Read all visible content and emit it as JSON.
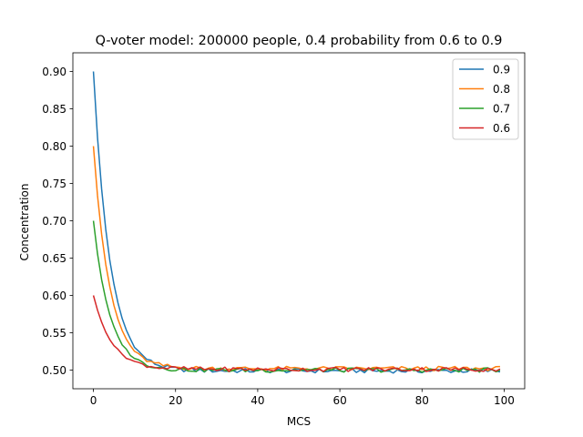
{
  "chart_data": {
    "type": "line",
    "title": "Q-voter model: 200000 people, 0.4 probability from 0.6 to 0.9",
    "xlabel": "MCS",
    "ylabel": "Concentration",
    "xlim": [
      -5,
      105
    ],
    "ylim": [
      0.475,
      0.925
    ],
    "xticks": [
      0,
      20,
      40,
      60,
      80,
      100
    ],
    "xtick_labels": [
      "0",
      "20",
      "40",
      "60",
      "80",
      "100"
    ],
    "yticks": [
      0.5,
      0.55,
      0.6,
      0.65,
      0.7,
      0.75,
      0.8,
      0.85,
      0.9
    ],
    "ytick_labels": [
      "0.50",
      "0.55",
      "0.60",
      "0.65",
      "0.70",
      "0.75",
      "0.80",
      "0.85",
      "0.90"
    ],
    "grid": false,
    "legend_position": "top-right",
    "series": [
      {
        "name": "0.9",
        "color": "#1f77b4",
        "start": 0.9,
        "tau": 4.0,
        "tail_offset": -0.001
      },
      {
        "name": "0.8",
        "color": "#ff7f0e",
        "start": 0.8,
        "tau": 4.0,
        "tail_offset": 0.002
      },
      {
        "name": "0.7",
        "color": "#2ca02c",
        "start": 0.7,
        "tau": 4.0,
        "tail_offset": 0.0
      },
      {
        "name": "0.6",
        "color": "#d62728",
        "start": 0.6,
        "tau": 4.5,
        "tail_offset": 0.001
      }
    ],
    "x_range": [
      0,
      99
    ],
    "equilibrium": 0.5
  }
}
